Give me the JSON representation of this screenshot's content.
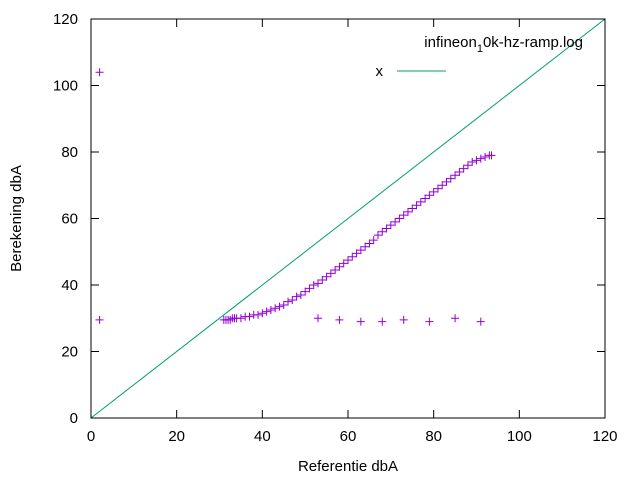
{
  "chart_data": {
    "type": "scatter",
    "xlabel": "Referentie dbA",
    "ylabel": "Berekening dbA",
    "xlim": [
      0,
      120
    ],
    "ylim": [
      0,
      120
    ],
    "xticks": [
      0,
      20,
      40,
      60,
      80,
      100,
      120
    ],
    "yticks": [
      0,
      20,
      40,
      60,
      80,
      100,
      120
    ],
    "grid": false,
    "legend_position": "top-right",
    "series": [
      {
        "name_parts": {
          "main": "infineon",
          "sub": "1",
          "rest": "0k-hz-ramp.log"
        },
        "type": "scatter",
        "marker": "plus",
        "color": "#9400d3",
        "x": [
          2,
          2,
          31,
          31.5,
          32,
          32.5,
          33,
          33.5,
          34,
          35,
          36,
          37,
          38,
          39,
          40,
          41,
          42,
          43,
          44,
          45,
          46,
          47,
          48,
          49,
          50,
          51,
          52,
          53,
          54,
          55,
          56,
          57,
          58,
          59,
          60,
          61,
          62,
          63,
          64,
          65,
          66,
          67,
          68,
          69,
          70,
          71,
          72,
          73,
          74,
          75,
          76,
          77,
          78,
          79,
          80,
          81,
          82,
          83,
          84,
          85,
          86,
          87,
          88,
          89,
          90,
          91,
          92,
          93,
          93.5,
          53,
          58,
          63,
          68,
          73,
          79,
          85,
          91
        ],
        "y": [
          104,
          29.5,
          29.5,
          29.5,
          29.5,
          29.5,
          30,
          30,
          30,
          30,
          30.5,
          30.5,
          31,
          31,
          31.5,
          32,
          32.5,
          33,
          33.5,
          34,
          35,
          35.5,
          36.5,
          37,
          38,
          39,
          40,
          40.5,
          41.5,
          42.5,
          43.5,
          44.5,
          45.5,
          46.5,
          47.5,
          48.5,
          49.5,
          50.5,
          51.5,
          52.5,
          53.5,
          55,
          56,
          57,
          58,
          59,
          60,
          61,
          62,
          63,
          64,
          65,
          66,
          67,
          68,
          69,
          70,
          71,
          72,
          73,
          74,
          75,
          76,
          77,
          77.5,
          78,
          78.5,
          79,
          79,
          30,
          29.5,
          29,
          29,
          29.5,
          29,
          30,
          29
        ]
      },
      {
        "name": "x",
        "type": "line",
        "color": "#009e73",
        "x": [
          0,
          120
        ],
        "y": [
          0,
          120
        ]
      }
    ]
  }
}
